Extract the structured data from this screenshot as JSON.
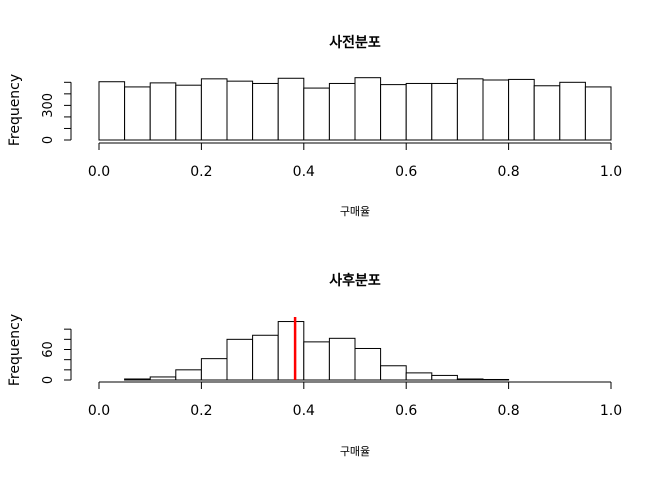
{
  "chart_data": [
    {
      "type": "bar",
      "histogram": true,
      "title": "사전분포",
      "xlabel": "구매율",
      "ylabel": "Frequency",
      "xlim": [
        0,
        1
      ],
      "ylim": [
        0,
        520
      ],
      "bin_width": 0.05,
      "bin_starts": [
        0.0,
        0.05,
        0.1,
        0.15,
        0.2,
        0.25,
        0.3,
        0.35,
        0.4,
        0.45,
        0.5,
        0.55,
        0.6,
        0.65,
        0.7,
        0.75,
        0.8,
        0.85,
        0.9,
        0.95
      ],
      "values": [
        505,
        460,
        495,
        475,
        530,
        510,
        490,
        535,
        450,
        490,
        540,
        480,
        490,
        490,
        530,
        520,
        525,
        470,
        500,
        460
      ],
      "xticks": [
        {
          "value": 0.0,
          "label": "0.0"
        },
        {
          "value": 0.2,
          "label": "0.2"
        },
        {
          "value": 0.4,
          "label": "0.4"
        },
        {
          "value": 0.6,
          "label": "0.6"
        },
        {
          "value": 0.8,
          "label": "0.8"
        },
        {
          "value": 1.0,
          "label": "1.0"
        }
      ],
      "yticks": [
        {
          "value": 0,
          "label": "0"
        },
        {
          "value": 100,
          "label": ""
        },
        {
          "value": 200,
          "label": ""
        },
        {
          "value": 300,
          "label": "300"
        },
        {
          "value": 400,
          "label": ""
        },
        {
          "value": 500,
          "label": ""
        }
      ]
    },
    {
      "type": "bar",
      "histogram": true,
      "title": "사후분포",
      "xlabel": "구매율",
      "ylabel": "Frequency",
      "xlim": [
        0,
        1
      ],
      "ylim": [
        0,
        120
      ],
      "bin_width": 0.05,
      "bin_starts": [
        0.05,
        0.1,
        0.15,
        0.2,
        0.25,
        0.3,
        0.35,
        0.4,
        0.45,
        0.5,
        0.55,
        0.6,
        0.65,
        0.7,
        0.75
      ],
      "values": [
        2,
        6,
        20,
        42,
        80,
        88,
        115,
        75,
        82,
        62,
        28,
        14,
        9,
        2,
        1
      ],
      "marker_line": {
        "x": 0.383,
        "color": "#ff0000"
      },
      "xticks": [
        {
          "value": 0.0,
          "label": "0.0"
        },
        {
          "value": 0.2,
          "label": "0.2"
        },
        {
          "value": 0.4,
          "label": "0.4"
        },
        {
          "value": 0.6,
          "label": "0.6"
        },
        {
          "value": 0.8,
          "label": "0.8"
        },
        {
          "value": 1.0,
          "label": "1.0"
        }
      ],
      "yticks": [
        {
          "value": 0,
          "label": "0"
        },
        {
          "value": 20,
          "label": ""
        },
        {
          "value": 40,
          "label": ""
        },
        {
          "value": 60,
          "label": "60"
        },
        {
          "value": 80,
          "label": ""
        },
        {
          "value": 100,
          "label": ""
        }
      ]
    }
  ]
}
